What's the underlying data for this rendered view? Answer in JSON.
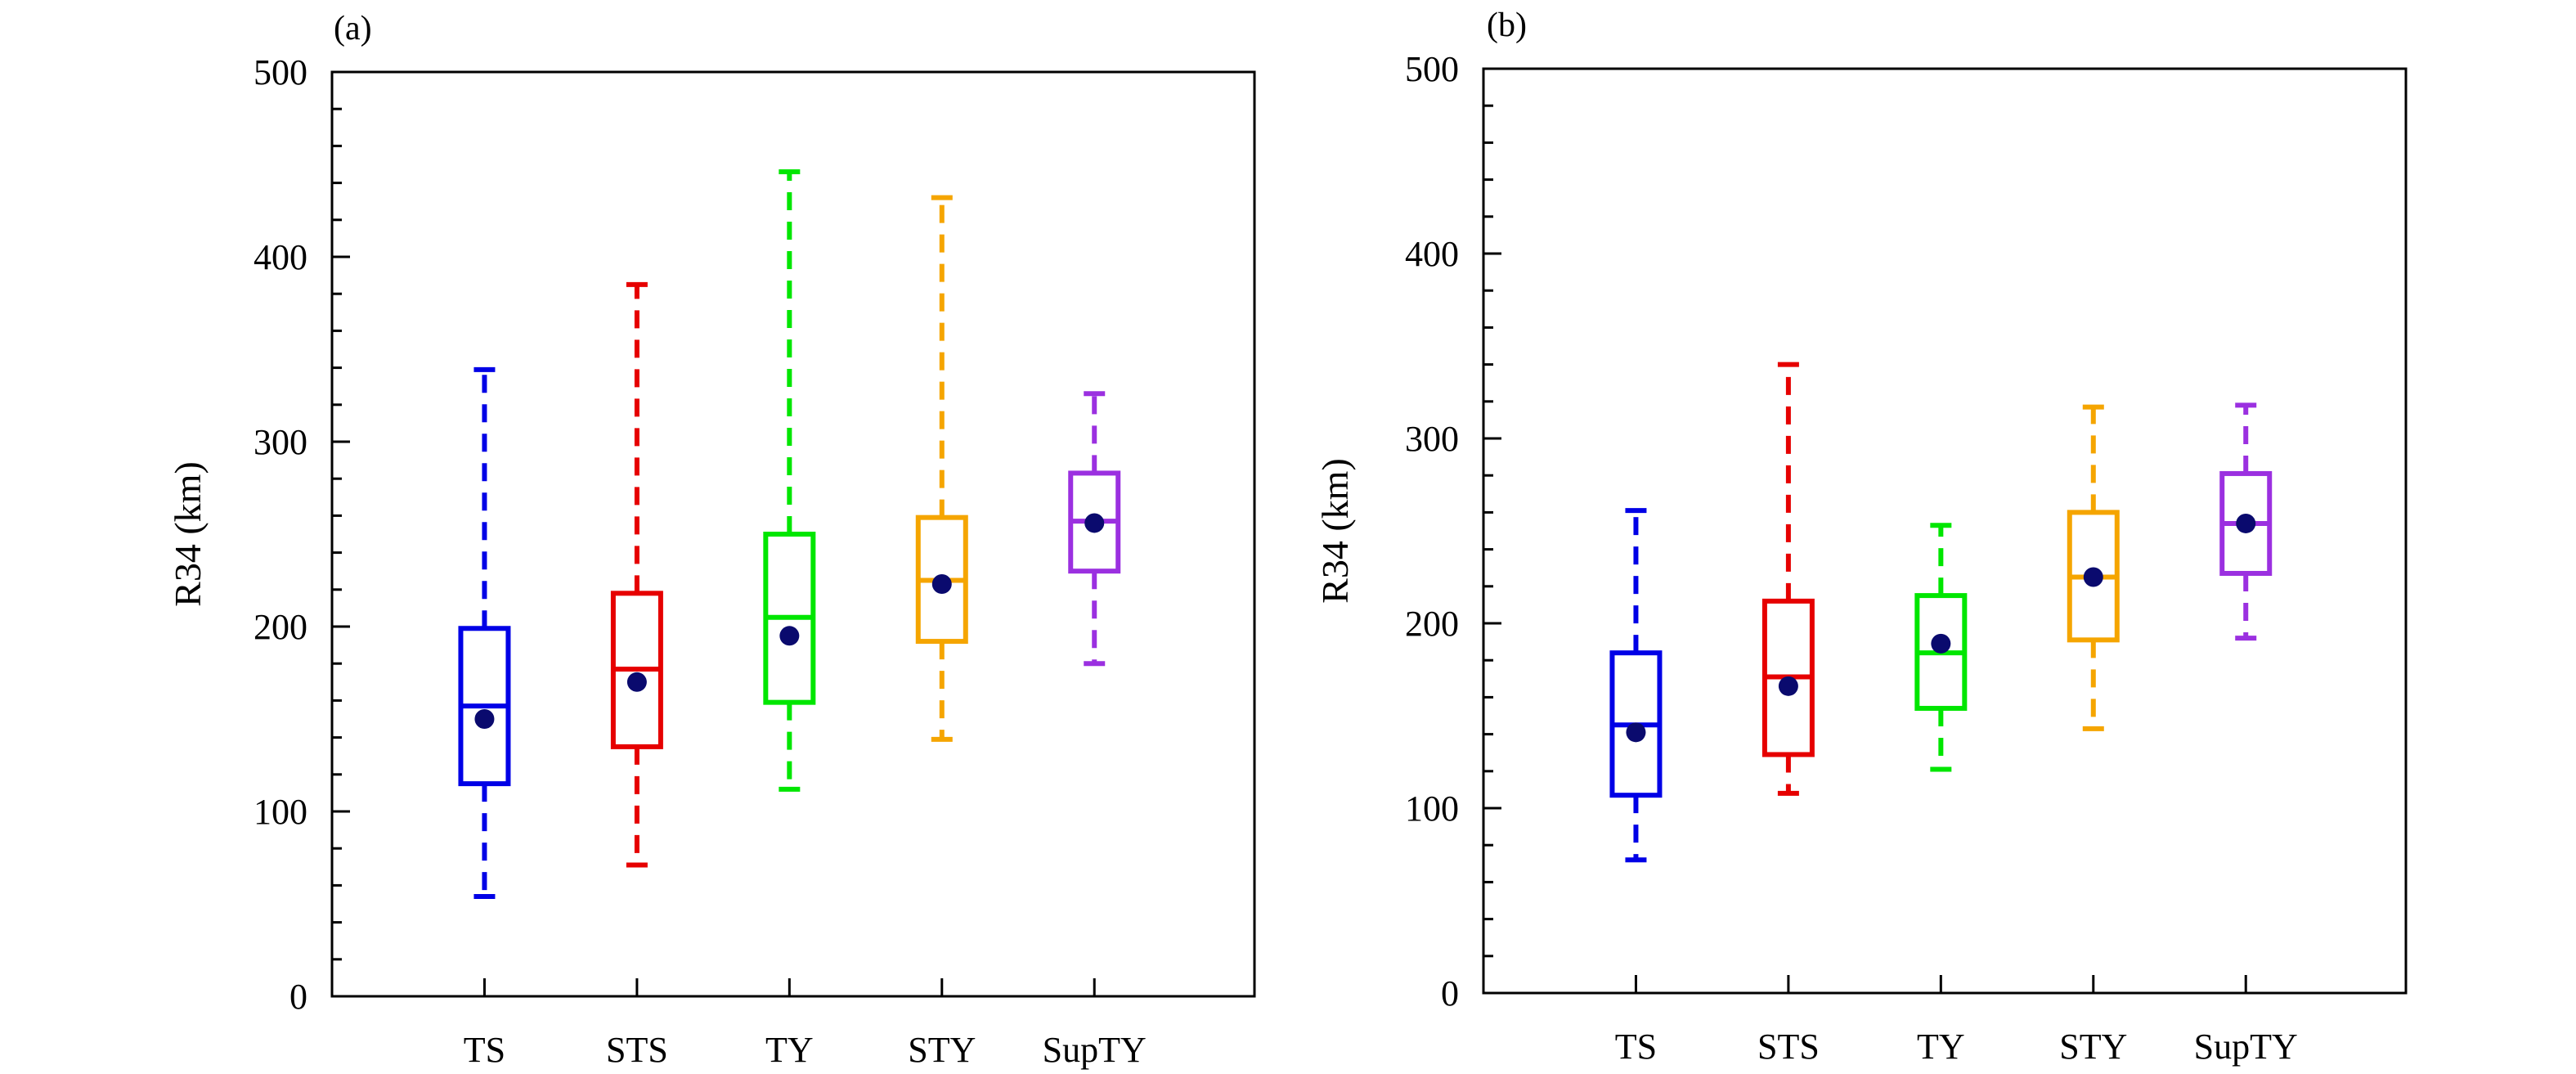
{
  "chart_data": [
    {
      "type": "box",
      "panel_label": "(a)",
      "ylabel": "R34 (km)",
      "ylim": [
        0,
        500
      ],
      "yticks": [
        0,
        100,
        200,
        300,
        400,
        500
      ],
      "categories": [
        "TS",
        "STS",
        "TY",
        "STY",
        "SupTY"
      ],
      "colors": [
        "#0000e6",
        "#e60000",
        "#00e600",
        "#f5a500",
        "#9b30e0"
      ],
      "boxes": [
        {
          "whisker_low": 54,
          "q1": 115,
          "median": 157,
          "q3": 199,
          "whisker_high": 339,
          "mean": 150
        },
        {
          "whisker_low": 71,
          "q1": 135,
          "median": 177,
          "q3": 218,
          "whisker_high": 385,
          "mean": 170
        },
        {
          "whisker_low": 112,
          "q1": 159,
          "median": 205,
          "q3": 250,
          "whisker_high": 446,
          "mean": 195
        },
        {
          "whisker_low": 139,
          "q1": 192,
          "median": 225,
          "q3": 259,
          "whisker_high": 432,
          "mean": 223
        },
        {
          "whisker_low": 180,
          "q1": 230,
          "median": 257,
          "q3": 283,
          "whisker_high": 326,
          "mean": 256
        }
      ]
    },
    {
      "type": "box",
      "panel_label": "(b)",
      "ylabel": "R34 (km)",
      "ylim": [
        0,
        500
      ],
      "yticks": [
        0,
        100,
        200,
        300,
        400,
        500
      ],
      "categories": [
        "TS",
        "STS",
        "TY",
        "STY",
        "SupTY"
      ],
      "colors": [
        "#0000e6",
        "#e60000",
        "#00e600",
        "#f5a500",
        "#9b30e0"
      ],
      "boxes": [
        {
          "whisker_low": 72,
          "q1": 107,
          "median": 145,
          "q3": 184,
          "whisker_high": 261,
          "mean": 141
        },
        {
          "whisker_low": 108,
          "q1": 129,
          "median": 171,
          "q3": 212,
          "whisker_high": 340,
          "mean": 166
        },
        {
          "whisker_low": 121,
          "q1": 154,
          "median": 184,
          "q3": 215,
          "whisker_high": 253,
          "mean": 189
        },
        {
          "whisker_low": 143,
          "q1": 191,
          "median": 225,
          "q3": 260,
          "whisker_high": 317,
          "mean": 225
        },
        {
          "whisker_low": 192,
          "q1": 227,
          "median": 254,
          "q3": 281,
          "whisker_high": 318,
          "mean": 254
        }
      ]
    }
  ]
}
